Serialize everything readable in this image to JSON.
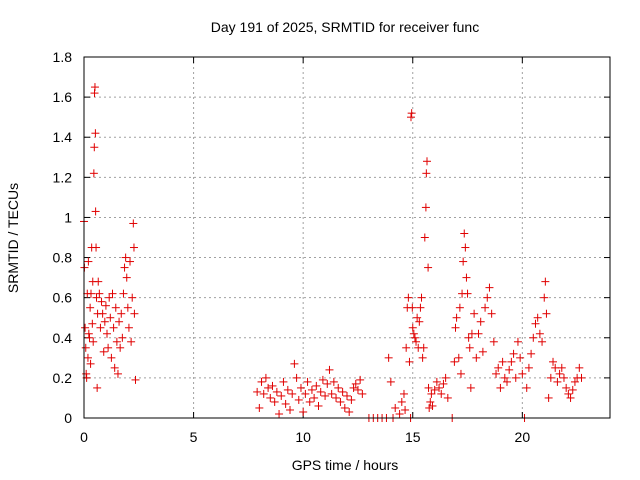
{
  "chart_data": {
    "type": "scatter",
    "title": "Day 191 of 2025, SRMTID for receiver func",
    "xlabel": "GPS time / hours",
    "ylabel": "SRMTID / TECUs",
    "xlim": [
      0,
      24
    ],
    "ylim": [
      0,
      1.8
    ],
    "xticks": [
      0,
      5,
      10,
      15,
      20
    ],
    "xtick_labels": [
      "0",
      "5",
      "10",
      "15",
      "20"
    ],
    "yticks": [
      0,
      0.2,
      0.4,
      0.6,
      0.8,
      1.0,
      1.2,
      1.4,
      1.6,
      1.8
    ],
    "ytick_labels": [
      "0",
      "0.2",
      "0.4",
      "0.6",
      "0.8",
      "1",
      "1.2",
      "1.4",
      "1.6",
      "1.8"
    ],
    "grid": true,
    "marker": "+",
    "series_color": "#e00000",
    "series": [
      {
        "name": "SRMTID",
        "points": [
          [
            0.0,
            0.98
          ],
          [
            0.02,
            0.75
          ],
          [
            0.05,
            0.45
          ],
          [
            0.08,
            0.35
          ],
          [
            0.1,
            0.22
          ],
          [
            0.12,
            0.2
          ],
          [
            0.15,
            0.62
          ],
          [
            0.18,
            0.3
          ],
          [
            0.2,
            0.78
          ],
          [
            0.22,
            0.42
          ],
          [
            0.25,
            0.4
          ],
          [
            0.28,
            0.55
          ],
          [
            0.3,
            0.27
          ],
          [
            0.32,
            0.62
          ],
          [
            0.35,
            0.85
          ],
          [
            0.38,
            0.47
          ],
          [
            0.4,
            0.68
          ],
          [
            0.42,
            0.38
          ],
          [
            0.45,
            1.22
          ],
          [
            0.47,
            1.35
          ],
          [
            0.48,
            1.62
          ],
          [
            0.5,
            1.65
          ],
          [
            0.52,
            1.42
          ],
          [
            0.53,
            1.03
          ],
          [
            0.55,
            0.85
          ],
          [
            0.57,
            0.6
          ],
          [
            0.6,
            0.15
          ],
          [
            0.62,
            0.52
          ],
          [
            0.65,
            0.68
          ],
          [
            0.7,
            0.62
          ],
          [
            0.75,
            0.45
          ],
          [
            0.8,
            0.58
          ],
          [
            0.85,
            0.52
          ],
          [
            0.9,
            0.33
          ],
          [
            0.95,
            0.48
          ],
          [
            1.0,
            0.56
          ],
          [
            1.05,
            0.42
          ],
          [
            1.1,
            0.35
          ],
          [
            1.15,
            0.6
          ],
          [
            1.2,
            0.5
          ],
          [
            1.25,
            0.3
          ],
          [
            1.3,
            0.62
          ],
          [
            1.35,
            0.45
          ],
          [
            1.4,
            0.25
          ],
          [
            1.45,
            0.55
          ],
          [
            1.5,
            0.38
          ],
          [
            1.55,
            0.22
          ],
          [
            1.6,
            0.48
          ],
          [
            1.65,
            0.35
          ],
          [
            1.7,
            0.52
          ],
          [
            1.75,
            0.4
          ],
          [
            1.8,
            0.62
          ],
          [
            1.85,
            0.75
          ],
          [
            1.9,
            0.8
          ],
          [
            1.95,
            0.7
          ],
          [
            2.0,
            0.55
          ],
          [
            2.05,
            0.45
          ],
          [
            2.1,
            0.78
          ],
          [
            2.15,
            0.38
          ],
          [
            2.2,
            0.6
          ],
          [
            2.25,
            0.97
          ],
          [
            2.28,
            0.85
          ],
          [
            2.3,
            0.52
          ],
          [
            2.35,
            0.19
          ],
          [
            7.9,
            0.13
          ],
          [
            8.0,
            0.05
          ],
          [
            8.1,
            0.18
          ],
          [
            8.2,
            0.12
          ],
          [
            8.3,
            0.2
          ],
          [
            8.4,
            0.15
          ],
          [
            8.5,
            0.1
          ],
          [
            8.6,
            0.16
          ],
          [
            8.7,
            0.08
          ],
          [
            8.8,
            0.13
          ],
          [
            8.9,
            0.02
          ],
          [
            9.0,
            0.11
          ],
          [
            9.1,
            0.18
          ],
          [
            9.2,
            0.07
          ],
          [
            9.3,
            0.14
          ],
          [
            9.4,
            0.04
          ],
          [
            9.5,
            0.12
          ],
          [
            9.6,
            0.27
          ],
          [
            9.7,
            0.2
          ],
          [
            9.8,
            0.09
          ],
          [
            9.9,
            0.15
          ],
          [
            10.0,
            0.03
          ],
          [
            10.1,
            0.12
          ],
          [
            10.2,
            0.18
          ],
          [
            10.3,
            0.08
          ],
          [
            10.4,
            0.14
          ],
          [
            10.5,
            0.1
          ],
          [
            10.6,
            0.16
          ],
          [
            10.7,
            0.06
          ],
          [
            10.8,
            0.13
          ],
          [
            10.9,
            0.19
          ],
          [
            11.0,
            0.11
          ],
          [
            11.1,
            0.17
          ],
          [
            11.2,
            0.24
          ],
          [
            11.3,
            0.12
          ],
          [
            11.4,
            0.18
          ],
          [
            11.5,
            0.1
          ],
          [
            11.6,
            0.15
          ],
          [
            11.7,
            0.08
          ],
          [
            11.8,
            0.13
          ],
          [
            11.9,
            0.05
          ],
          [
            12.0,
            0.11
          ],
          [
            12.1,
            0.03
          ],
          [
            12.2,
            0.09
          ],
          [
            12.3,
            0.15
          ],
          [
            12.4,
            0.17
          ],
          [
            12.5,
            0.14
          ],
          [
            12.6,
            0.19
          ],
          [
            12.7,
            0.12
          ],
          [
            13.0,
            0.0
          ],
          [
            13.2,
            0.0
          ],
          [
            13.4,
            0.0
          ],
          [
            13.6,
            0.0
          ],
          [
            13.8,
            0.0
          ],
          [
            13.9,
            0.3
          ],
          [
            14.0,
            0.18
          ],
          [
            14.1,
            0.0
          ],
          [
            14.2,
            0.05
          ],
          [
            14.4,
            0.02
          ],
          [
            14.5,
            0.08
          ],
          [
            14.6,
            0.12
          ],
          [
            14.65,
            0.04
          ],
          [
            14.7,
            0.35
          ],
          [
            14.75,
            0.55
          ],
          [
            14.8,
            0.6
          ],
          [
            14.85,
            0.28
          ],
          [
            14.9,
            0.0
          ],
          [
            14.92,
            1.5
          ],
          [
            14.95,
            1.52
          ],
          [
            14.98,
            0.55
          ],
          [
            15.0,
            0.45
          ],
          [
            15.05,
            0.42
          ],
          [
            15.1,
            0.4
          ],
          [
            15.15,
            0.38
          ],
          [
            15.2,
            0.5
          ],
          [
            15.25,
            0.35
          ],
          [
            15.3,
            0.48
          ],
          [
            15.35,
            0.55
          ],
          [
            15.4,
            0.6
          ],
          [
            15.45,
            0.3
          ],
          [
            15.5,
            0.35
          ],
          [
            15.55,
            0.9
          ],
          [
            15.6,
            1.05
          ],
          [
            15.62,
            1.22
          ],
          [
            15.65,
            1.28
          ],
          [
            15.7,
            0.75
          ],
          [
            15.72,
            0.15
          ],
          [
            15.75,
            0.05
          ],
          [
            15.8,
            0.08
          ],
          [
            15.85,
            0.12
          ],
          [
            15.9,
            0.06
          ],
          [
            16.0,
            0.14
          ],
          [
            16.1,
            0.18
          ],
          [
            16.2,
            0.15
          ],
          [
            16.3,
            0.12
          ],
          [
            16.4,
            0.17
          ],
          [
            16.5,
            0.2
          ],
          [
            16.6,
            0.1
          ],
          [
            16.8,
            0.0
          ],
          [
            16.9,
            0.28
          ],
          [
            16.95,
            0.45
          ],
          [
            17.0,
            0.5
          ],
          [
            17.1,
            0.3
          ],
          [
            17.15,
            0.55
          ],
          [
            17.2,
            0.22
          ],
          [
            17.25,
            0.62
          ],
          [
            17.3,
            0.78
          ],
          [
            17.35,
            0.92
          ],
          [
            17.4,
            0.85
          ],
          [
            17.45,
            0.7
          ],
          [
            17.5,
            0.62
          ],
          [
            17.55,
            0.4
          ],
          [
            17.6,
            0.35
          ],
          [
            17.65,
            0.15
          ],
          [
            17.7,
            0.42
          ],
          [
            17.8,
            0.52
          ],
          [
            17.9,
            0.3
          ],
          [
            18.0,
            0.42
          ],
          [
            18.1,
            0.48
          ],
          [
            18.2,
            0.33
          ],
          [
            18.3,
            0.55
          ],
          [
            18.4,
            0.6
          ],
          [
            18.5,
            0.65
          ],
          [
            18.6,
            0.52
          ],
          [
            18.7,
            0.38
          ],
          [
            18.8,
            0.22
          ],
          [
            18.9,
            0.25
          ],
          [
            19.0,
            0.15
          ],
          [
            19.1,
            0.28
          ],
          [
            19.2,
            0.2
          ],
          [
            19.3,
            0.18
          ],
          [
            19.4,
            0.24
          ],
          [
            19.5,
            0.28
          ],
          [
            19.6,
            0.32
          ],
          [
            19.7,
            0.2
          ],
          [
            19.8,
            0.38
          ],
          [
            19.9,
            0.3
          ],
          [
            20.0,
            0.22
          ],
          [
            20.1,
            0.0
          ],
          [
            20.2,
            0.15
          ],
          [
            20.3,
            0.25
          ],
          [
            20.4,
            0.32
          ],
          [
            20.5,
            0.4
          ],
          [
            20.6,
            0.47
          ],
          [
            20.7,
            0.5
          ],
          [
            20.8,
            0.42
          ],
          [
            20.9,
            0.38
          ],
          [
            21.0,
            0.6
          ],
          [
            21.05,
            0.68
          ],
          [
            21.1,
            0.52
          ],
          [
            21.2,
            0.1
          ],
          [
            21.3,
            0.2
          ],
          [
            21.4,
            0.28
          ],
          [
            21.5,
            0.25
          ],
          [
            21.6,
            0.18
          ],
          [
            21.7,
            0.22
          ],
          [
            21.8,
            0.25
          ],
          [
            21.9,
            0.2
          ],
          [
            22.0,
            0.15
          ],
          [
            22.1,
            0.12
          ],
          [
            22.2,
            0.1
          ],
          [
            22.3,
            0.14
          ],
          [
            22.4,
            0.18
          ],
          [
            22.5,
            0.2
          ],
          [
            22.6,
            0.25
          ],
          [
            22.7,
            0.2
          ]
        ]
      }
    ]
  }
}
